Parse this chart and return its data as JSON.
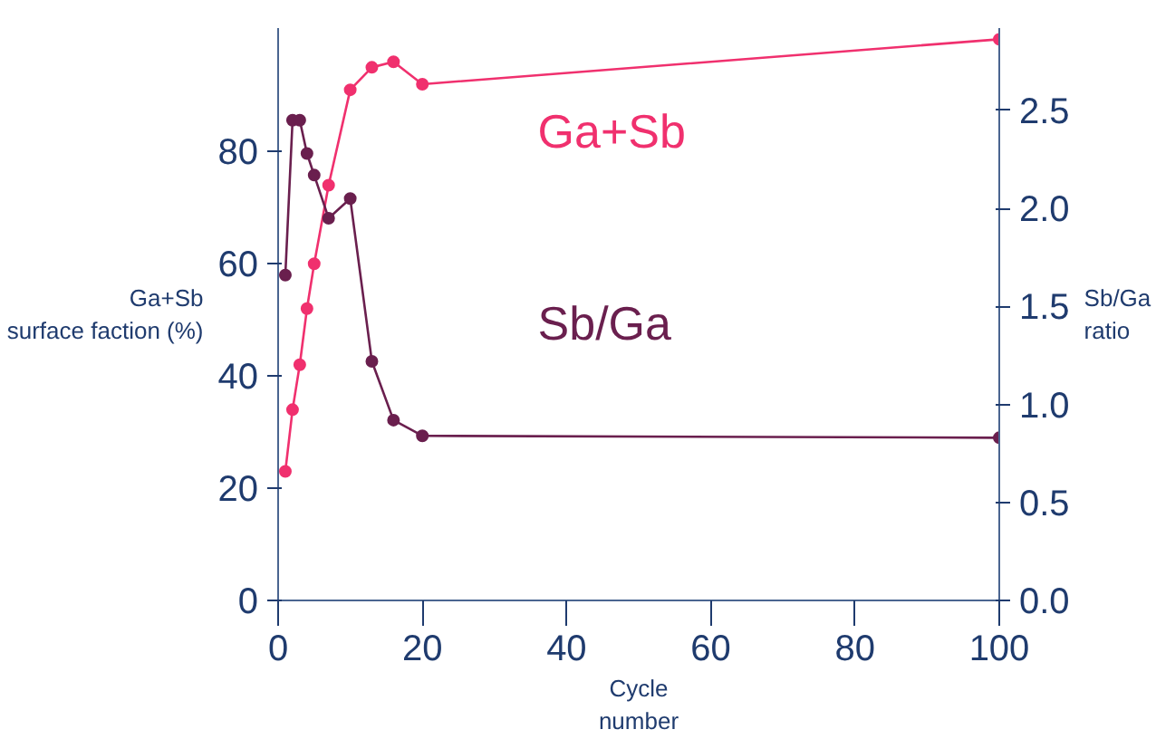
{
  "chart_data": {
    "type": "line",
    "ylabel": "Ga+Sb\nsurface faction (%)",
    "y2label": "Sb/Ga\nratio",
    "xlabel": "Cycle\nnumber",
    "xlim": [
      0,
      100
    ],
    "xticks": [
      0,
      20,
      40,
      60,
      80,
      100
    ],
    "ylim": [
      0,
      102
    ],
    "yticks": [
      0,
      20,
      40,
      60,
      80
    ],
    "y2lim": [
      0,
      2.92
    ],
    "y2ticks": [
      {
        "value": 0,
        "label": "0.0"
      },
      {
        "value": 0.5,
        "label": "0.5"
      },
      {
        "value": 1,
        "label": "1.0"
      },
      {
        "value": 1.5,
        "label": "1.5"
      },
      {
        "value": 2,
        "label": "2.0"
      },
      {
        "value": 2.5,
        "label": "2.5"
      }
    ],
    "marker": "circle",
    "grid": false,
    "series": [
      {
        "name": "Ga+Sb",
        "color": "#f0306e",
        "x": [
          1,
          2,
          3,
          4,
          5,
          7,
          10,
          13,
          16,
          20,
          100
        ],
        "values": [
          23,
          34,
          42,
          52,
          60,
          74,
          91,
          95,
          96,
          92,
          100
        ]
      },
      {
        "name": "Sb/Ga",
        "color": "#6a1f4e",
        "axis": "y2",
        "x": [
          1,
          2,
          3,
          4,
          5,
          7,
          10,
          13,
          16,
          20,
          100
        ],
        "values": [
          1.66,
          2.45,
          2.45,
          2.28,
          2.17,
          1.95,
          2.05,
          1.22,
          0.92,
          0.84,
          0.83
        ]
      }
    ]
  }
}
